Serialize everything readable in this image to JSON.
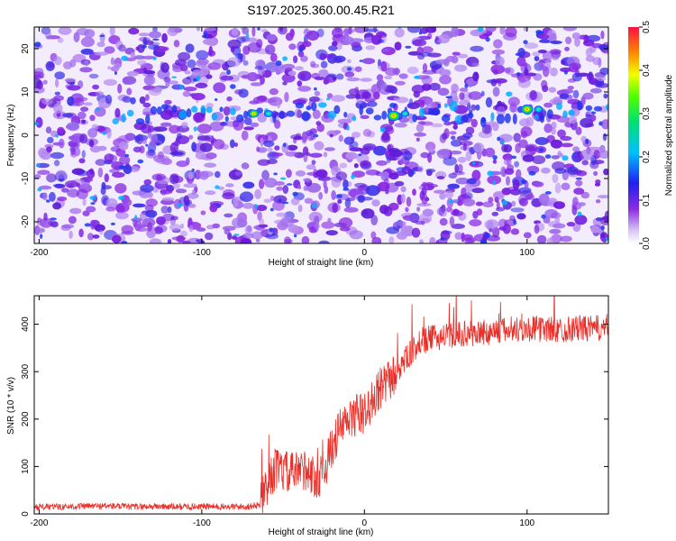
{
  "figure": {
    "title": "S197.2025.360.00.45.R21"
  },
  "chart_data": [
    {
      "type": "heatmap",
      "xlabel": "Height of straight line (km)",
      "ylabel": "Frequency (Hz)",
      "xlim": [
        -203,
        150
      ],
      "ylim": [
        -25,
        25
      ],
      "xticks": [
        -200,
        -100,
        0,
        100
      ],
      "yticks": [
        -20,
        -10,
        0,
        10,
        20
      ],
      "grid": false,
      "description_of_signal": "broadband noise with a persistent narrow band near 5 Hz; strongest spots near x=-68, x=18 and x=100",
      "hotspots": [
        {
          "x": -68,
          "y": 5,
          "amplitude": 0.3
        },
        {
          "x": -59,
          "y": 5,
          "amplitude": 0.22
        },
        {
          "x": 18,
          "y": 4.5,
          "amplitude": 0.45
        },
        {
          "x": 25,
          "y": 5,
          "amplitude": 0.2
        },
        {
          "x": 100,
          "y": 6,
          "amplitude": 0.4
        },
        {
          "x": 107,
          "y": 6,
          "amplitude": 0.22
        }
      ],
      "colorbar": {
        "label": "Normalized spectral amplitude",
        "range": [
          0.0,
          0.5
        ],
        "ticks": [
          "0.0",
          "0.1",
          "0.2",
          "0.3",
          "0.4",
          "0.5"
        ]
      }
    },
    {
      "type": "line",
      "xlabel": "Height of straight line (km)",
      "ylabel": "SNR (10 * v/v)",
      "xlim": [
        -203,
        150
      ],
      "ylim": [
        0,
        460
      ],
      "xticks": [
        -200,
        -100,
        0,
        100
      ],
      "yticks": [
        0,
        100,
        200,
        300,
        400
      ],
      "grid": false,
      "series": [
        {
          "color": "#e8302a",
          "x": [
            -203,
            -190,
            -175,
            -160,
            -145,
            -130,
            -115,
            -100,
            -90,
            -80,
            -70,
            -64,
            -60,
            -55,
            -50,
            -45,
            -40,
            -35,
            -30,
            -25,
            -20,
            -15,
            -10,
            -5,
            0,
            5,
            10,
            15,
            20,
            25,
            30,
            35,
            40,
            50,
            60,
            70,
            80,
            90,
            100,
            110,
            120,
            130,
            140,
            150
          ],
          "y": [
            15,
            15,
            16,
            17,
            15,
            16,
            15,
            16,
            15,
            15,
            16,
            20,
            55,
            95,
            90,
            85,
            90,
            95,
            70,
            90,
            140,
            180,
            195,
            210,
            210,
            240,
            260,
            280,
            300,
            325,
            345,
            360,
            370,
            375,
            380,
            380,
            385,
            388,
            390,
            390,
            388,
            392,
            390,
            395
          ],
          "noise_amplitude_note": "high-frequency fluctuation of roughly +/-10 below -64 km and +/-25 to +/-60 above"
        }
      ]
    }
  ]
}
